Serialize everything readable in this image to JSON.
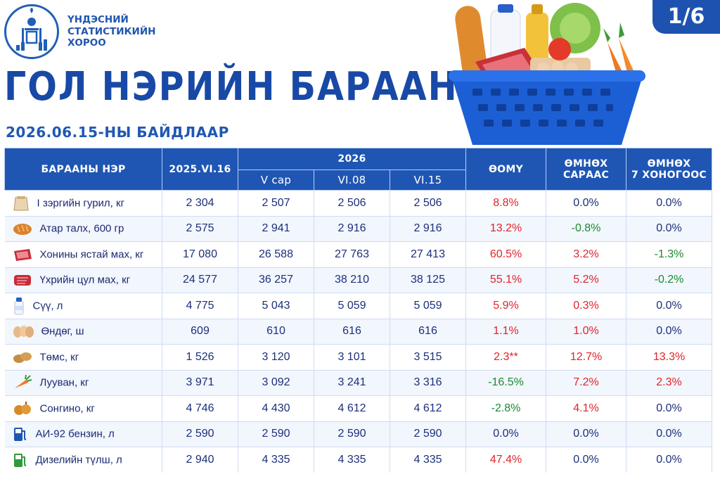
{
  "header": {
    "org_lines": [
      "ҮНДЭСНИЙ",
      "СТАТИСТИКИЙН",
      "ХОРОО"
    ],
    "title": "ГОЛ НЭРИЙН БАРААНЫ ҮНЭ",
    "subtitle": "2026.06.15-НЫ БАЙДЛААР",
    "page_indicator": "1/6"
  },
  "colors": {
    "header_blue": "#1f56b4",
    "title_blue": "#1849a6",
    "increase": "#e2222b",
    "decrease": "#1a8a2e"
  },
  "table": {
    "headers": {
      "name": "БАРААНЫ НЭР",
      "prev_year": "2025.VI.16",
      "year": "2026",
      "sub": [
        "V сар",
        "VI.08",
        "VI.15"
      ],
      "yoy": "ӨОМҮ",
      "prev_month": [
        "ӨМНӨХ",
        "САРААС"
      ],
      "prev_week": [
        "ӨМНӨХ",
        "7 ХОНОГООС"
      ]
    },
    "rows": [
      {
        "icon": "flour-sack-icon",
        "name": "I зэргийн гурил, кг",
        "prev_year": "2 304",
        "may": "2 507",
        "jun08": "2 506",
        "jun15": "2 506",
        "yoy": "8.8%",
        "yoy_trend": "up",
        "month": "0.0%",
        "month_trend": "flat",
        "week": "0.0%",
        "week_trend": "flat"
      },
      {
        "icon": "bread-icon",
        "name": "Атар талх, 600 гр",
        "prev_year": "2 575",
        "may": "2 941",
        "jun08": "2 916",
        "jun15": "2 916",
        "yoy": "13.2%",
        "yoy_trend": "up",
        "month": "-0.8%",
        "month_trend": "down",
        "week": "0.0%",
        "week_trend": "flat"
      },
      {
        "icon": "meat-icon",
        "name": "Хонины ястай мах, кг",
        "prev_year": "17 080",
        "may": "26 588",
        "jun08": "27 763",
        "jun15": "27 413",
        "yoy": "60.5%",
        "yoy_trend": "up",
        "month": "3.2%",
        "month_trend": "up",
        "week": "-1.3%",
        "week_trend": "down"
      },
      {
        "icon": "beef-icon",
        "name": "Үхрийн цул мах, кг",
        "prev_year": "24 577",
        "may": "36 257",
        "jun08": "38 210",
        "jun15": "38 125",
        "yoy": "55.1%",
        "yoy_trend": "up",
        "month": "5.2%",
        "month_trend": "up",
        "week": "-0.2%",
        "week_trend": "down"
      },
      {
        "icon": "milk-bottle-icon",
        "name": "Сүү, л",
        "prev_year": "4 775",
        "may": "5 043",
        "jun08": "5 059",
        "jun15": "5 059",
        "yoy": "5.9%",
        "yoy_trend": "up",
        "month": "0.3%",
        "month_trend": "up",
        "week": "0.0%",
        "week_trend": "flat"
      },
      {
        "icon": "eggs-icon",
        "name": "Өндөг, ш",
        "prev_year": "609",
        "may": "610",
        "jun08": "616",
        "jun15": "616",
        "yoy": "1.1%",
        "yoy_trend": "up",
        "month": "1.0%",
        "month_trend": "up",
        "week": "0.0%",
        "week_trend": "flat"
      },
      {
        "icon": "potatoes-icon",
        "name": "Төмс, кг",
        "prev_year": "1 526",
        "may": "3 120",
        "jun08": "3 101",
        "jun15": "3 515",
        "yoy": "2.3**",
        "yoy_trend": "up",
        "month": "12.7%",
        "month_trend": "up",
        "week": "13.3%",
        "week_trend": "up"
      },
      {
        "icon": "carrot-icon",
        "name": "Лууван, кг",
        "prev_year": "3 971",
        "may": "3 092",
        "jun08": "3 241",
        "jun15": "3 316",
        "yoy": "-16.5%",
        "yoy_trend": "down",
        "month": "7.2%",
        "month_trend": "up",
        "week": "2.3%",
        "week_trend": "up"
      },
      {
        "icon": "onion-icon",
        "name": "Сонгино, кг",
        "prev_year": "4 746",
        "may": "4 430",
        "jun08": "4 612",
        "jun15": "4 612",
        "yoy": "-2.8%",
        "yoy_trend": "down",
        "month": "4.1%",
        "month_trend": "up",
        "week": "0.0%",
        "week_trend": "flat"
      },
      {
        "icon": "fuel-pump-blue-icon",
        "name": "АИ-92 бензин, л",
        "prev_year": "2 590",
        "may": "2 590",
        "jun08": "2 590",
        "jun15": "2 590",
        "yoy": "0.0%",
        "yoy_trend": "flat",
        "month": "0.0%",
        "month_trend": "flat",
        "week": "0.0%",
        "week_trend": "flat"
      },
      {
        "icon": "fuel-pump-green-icon",
        "name": "Дизелийн түлш, л",
        "prev_year": "2 940",
        "may": "4 335",
        "jun08": "4 335",
        "jun15": "4 335",
        "yoy": "47.4%",
        "yoy_trend": "up",
        "month": "0.0%",
        "month_trend": "flat",
        "week": "0.0%",
        "week_trend": "flat"
      }
    ]
  }
}
